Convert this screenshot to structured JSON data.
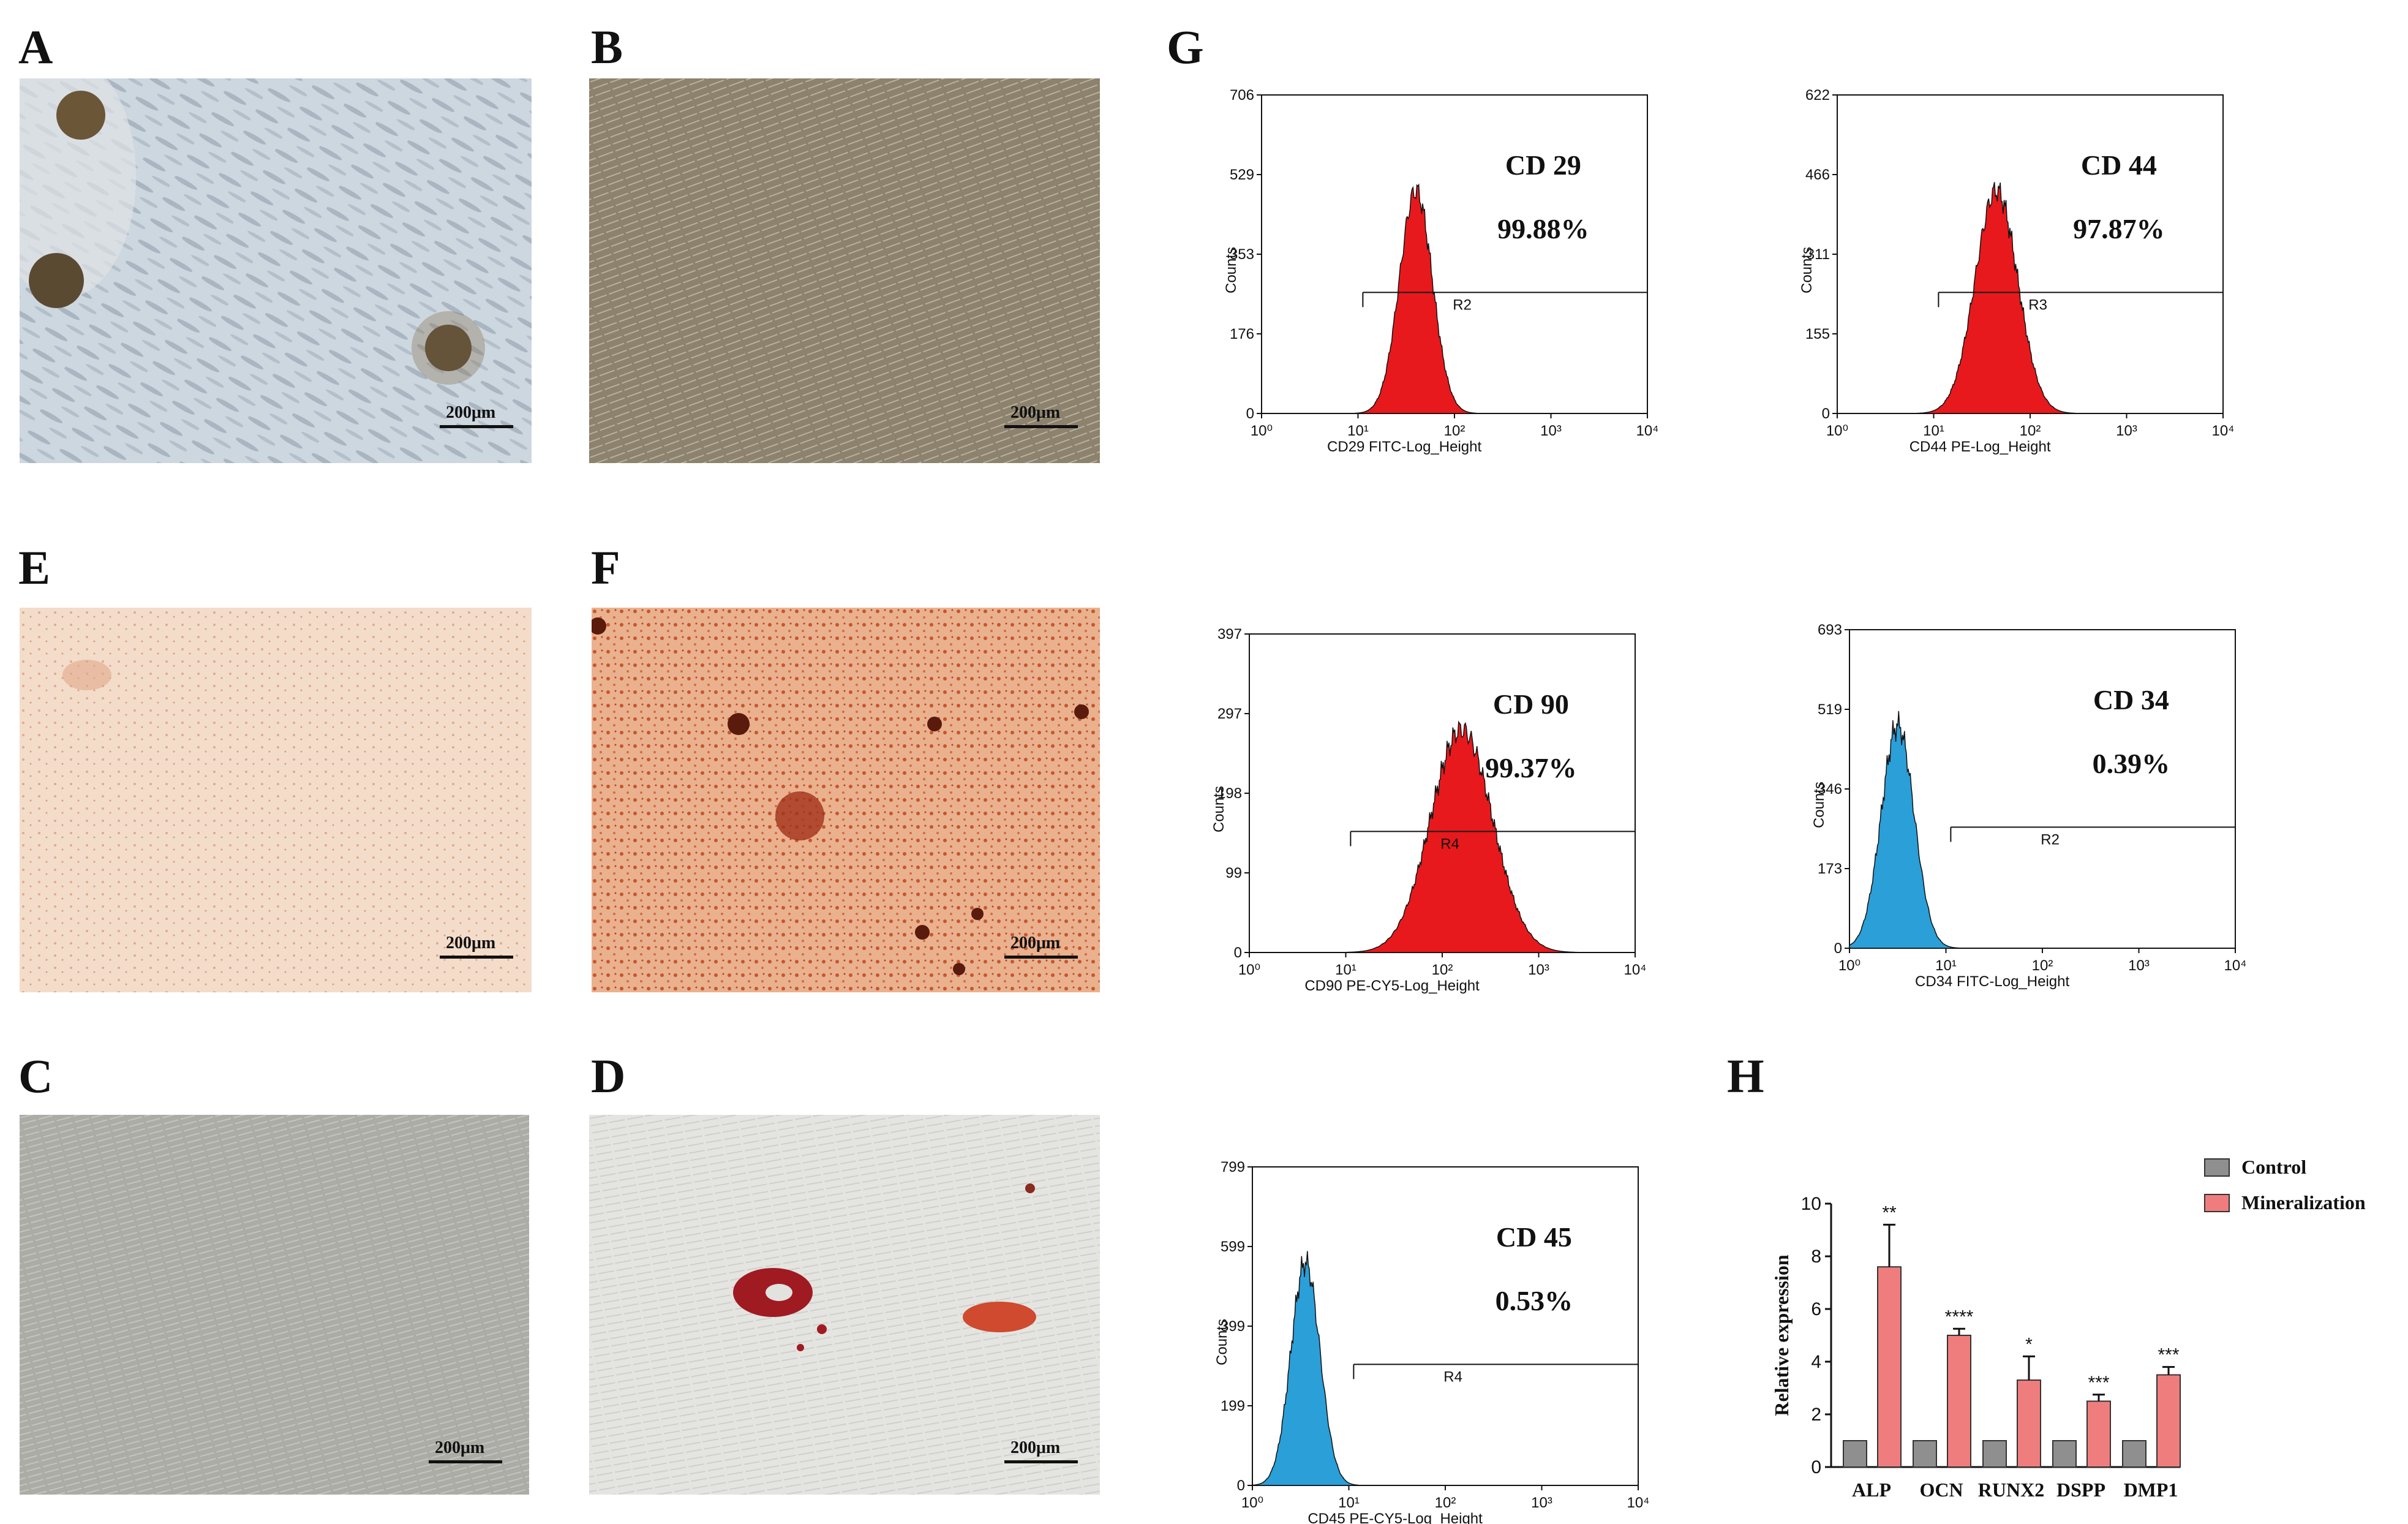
{
  "panels": {
    "A": {
      "letter": "A",
      "scale": "200μm"
    },
    "B": {
      "letter": "B",
      "scale": "200μm"
    },
    "E": {
      "letter": "E",
      "scale": "200μm"
    },
    "F": {
      "letter": "F",
      "scale": "200μm"
    },
    "C": {
      "letter": "C",
      "scale": "200μm"
    },
    "D": {
      "letter": "D",
      "scale": "200μm"
    },
    "G": {
      "letter": "G"
    },
    "H": {
      "letter": "H"
    }
  },
  "flow_histograms": [
    {
      "marker": "CD 29",
      "percent": "99.88%",
      "gate": "R2",
      "xlabel": "CD29 FITC-Log_Height",
      "ylabel": "Counts",
      "yticks": [
        "0",
        "176",
        "353",
        "529",
        "706"
      ],
      "xticks": [
        "10⁰",
        "10¹",
        "10²",
        "10³",
        "10⁴"
      ],
      "peak_log": 1.6,
      "sigma": 0.17,
      "color": "#e8191c"
    },
    {
      "marker": "CD 44",
      "percent": "97.87%",
      "gate": "R3",
      "xlabel": "CD44 PE-Log_Height",
      "ylabel": "Counts",
      "yticks": [
        "0",
        "155",
        "311",
        "466",
        "622"
      ],
      "xticks": [
        "10⁰",
        "10¹",
        "10²",
        "10³",
        "10⁴"
      ],
      "peak_log": 1.65,
      "sigma": 0.22,
      "color": "#e8191c"
    },
    {
      "marker": "CD 90",
      "percent": "99.37%",
      "gate": "R4",
      "xlabel": "CD90 PE-CY5-Log_Height",
      "ylabel": "Counts",
      "yticks": [
        "0",
        "99",
        "198",
        "297",
        "397"
      ],
      "xticks": [
        "10⁰",
        "10¹",
        "10²",
        "10³",
        "10⁴"
      ],
      "peak_log": 2.2,
      "sigma": 0.32,
      "color": "#e8191c"
    },
    {
      "marker": "CD 34",
      "percent": "0.39%",
      "gate": "R2",
      "xlabel": "CD34 FITC-Log_Height",
      "ylabel": "Counts",
      "yticks": [
        "0",
        "173",
        "346",
        "519",
        "693"
      ],
      "xticks": [
        "10⁰",
        "10¹",
        "10²",
        "10³",
        "10⁴"
      ],
      "peak_log": 0.5,
      "sigma": 0.17,
      "color": "#2a9fd8"
    },
    {
      "marker": "CD 45",
      "percent": "0.53%",
      "gate": "R4",
      "xlabel": "CD45 PE-CY5-Log_Height",
      "ylabel": "Counts",
      "yticks": [
        "0",
        "199",
        "399",
        "599",
        "799"
      ],
      "xticks": [
        "10⁰",
        "10¹",
        "10²",
        "10³",
        "10⁴"
      ],
      "peak_log": 0.55,
      "sigma": 0.15,
      "color": "#2a9fd8"
    }
  ],
  "chart_data": {
    "type": "bar",
    "ylabel": "Relative expression",
    "ylim": [
      0,
      10
    ],
    "yticks": [
      0,
      2,
      4,
      6,
      8,
      10
    ],
    "categories": [
      "ALP",
      "OCN",
      "RUNX2",
      "DSPP",
      "DMP1"
    ],
    "series": [
      {
        "name": "Control",
        "values": [
          1,
          1,
          1,
          1,
          1
        ],
        "errors": [
          0,
          0,
          0,
          0,
          0
        ],
        "color": "#8f8f8f"
      },
      {
        "name": "Mineralization",
        "values": [
          7.6,
          5.0,
          3.3,
          2.5,
          3.5
        ],
        "errors": [
          1.6,
          0.25,
          0.9,
          0.25,
          0.3
        ],
        "color": "#f07d7d"
      }
    ],
    "significance": [
      "**",
      "****",
      "*",
      "***",
      "***"
    ],
    "legend": "top-right"
  }
}
